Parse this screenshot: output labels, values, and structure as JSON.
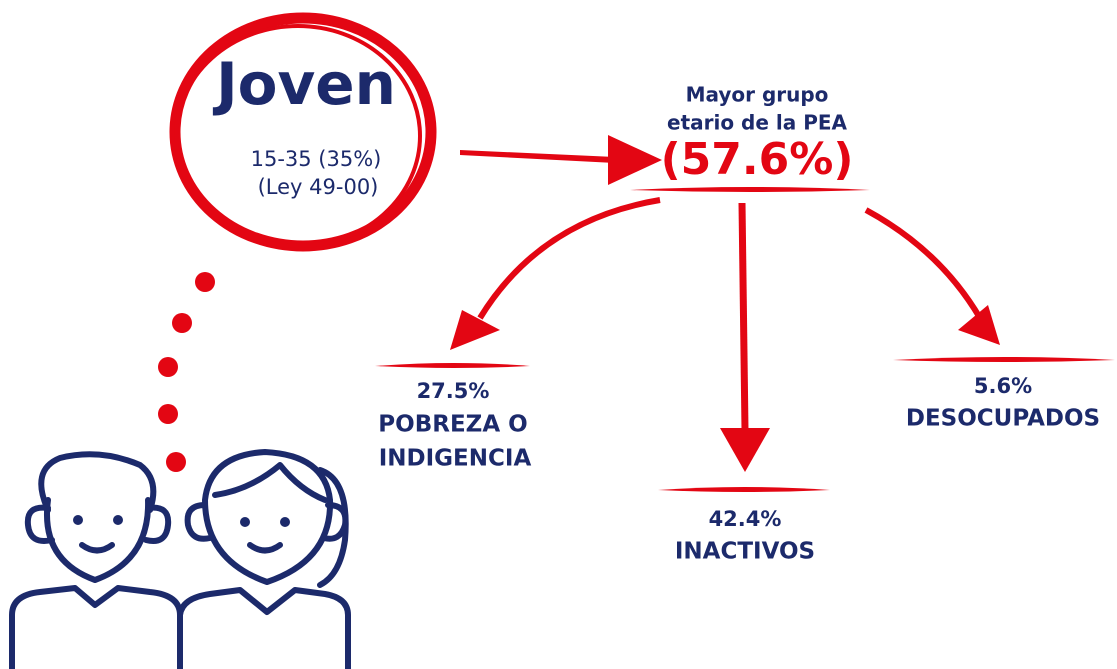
{
  "header": {
    "title": "Joven",
    "lines": [
      "15-35 (35%)",
      "(Ley 49-00)"
    ]
  },
  "center": {
    "lines": [
      "Mayor grupo",
      "etario de la PEA"
    ],
    "value": "(57.6%)"
  },
  "branches": [
    {
      "value": "27.5%",
      "label": [
        "POBREZA O",
        "INDIGENCIA"
      ]
    },
    {
      "value": "42.4%",
      "label": [
        "INACTIVOS"
      ]
    },
    {
      "value": "5.6%",
      "label": [
        "DESOCUPADOS"
      ]
    }
  ]
}
